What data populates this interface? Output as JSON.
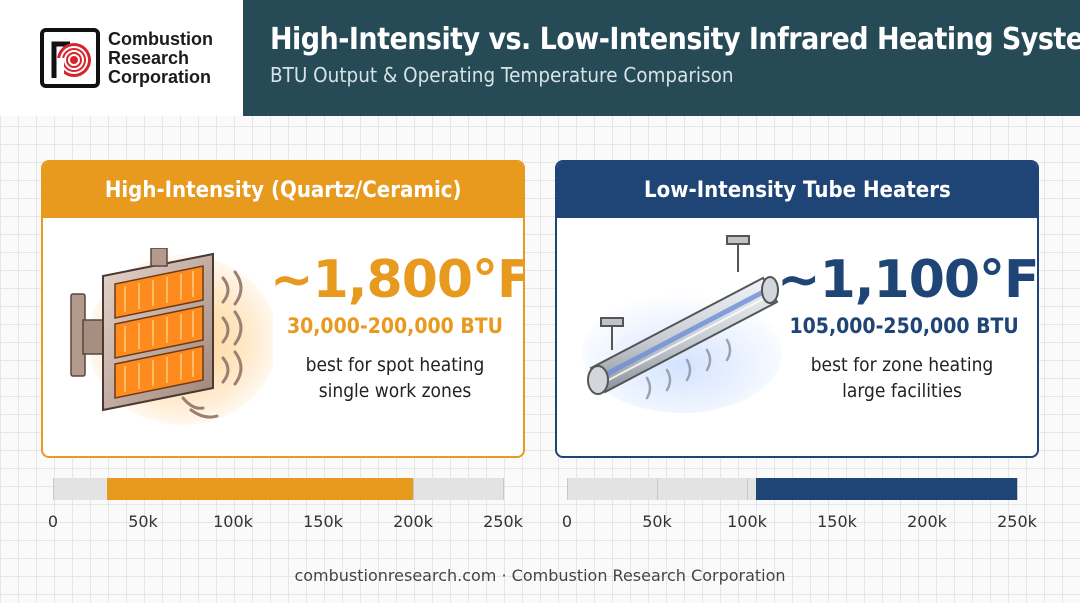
{
  "brand": {
    "name_lines": [
      "Combustion",
      "Research",
      "Corporation"
    ]
  },
  "header": {
    "title": "High-Intensity vs. Low-Intensity Infrared Heating Systems",
    "subtitle": "BTU Output & Operating Temperature Comparison"
  },
  "panels": [
    {
      "title": "High-Intensity (Quartz/Ceramic)",
      "temp": "~1,800°F",
      "btu": "30,000-200,000 BTU",
      "desc_lines": [
        "best for spot heating",
        "single work zones"
      ],
      "accent": "#e89a1f",
      "icon": "quartz-ceramic-heater-icon"
    },
    {
      "title": "Low-Intensity Tube Heaters",
      "temp": "~1,100°F",
      "btu": "105,000-250,000 BTU",
      "desc_lines": [
        "best for zone heating",
        "large facilities"
      ],
      "accent": "#1f4577",
      "icon": "tube-heater-icon"
    }
  ],
  "chart_data": [
    {
      "type": "bar",
      "orientation": "horizontal-range",
      "range": [
        30000,
        200000
      ],
      "xlim": [
        0,
        250000
      ],
      "tick_values": [
        0,
        50000,
        100000,
        150000,
        200000,
        250000
      ],
      "tick_labels": [
        "0",
        "50k",
        "100k",
        "150k",
        "200k",
        "250k"
      ],
      "fill_color": "#e89a1f",
      "track_color": "#e3e3e3",
      "grid": true
    },
    {
      "type": "bar",
      "orientation": "horizontal-range",
      "range": [
        105000,
        250000
      ],
      "xlim": [
        0,
        250000
      ],
      "tick_values": [
        0,
        50000,
        100000,
        150000,
        200000,
        250000
      ],
      "tick_labels": [
        "0",
        "50k",
        "100k",
        "150k",
        "200k",
        "250k"
      ],
      "fill_color": "#1f4577",
      "track_color": "#e3e3e3",
      "grid": true
    }
  ],
  "footer": {
    "text": "combustionresearch.com · Combustion Research Corporation"
  }
}
